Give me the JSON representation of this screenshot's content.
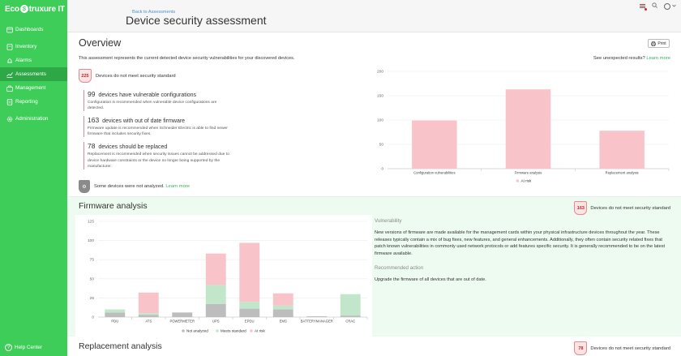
{
  "brand": {
    "name_prefix": "Eco",
    "name_suffix": "truxure IT",
    "logo_letter": "S"
  },
  "sidebar": {
    "items": [
      {
        "label": "Dashboards",
        "icon": "grid-icon"
      },
      {
        "label": "Inventory",
        "icon": "box-icon"
      },
      {
        "label": "Alarms",
        "icon": "bell-icon"
      },
      {
        "label": "Assessments",
        "icon": "chart-icon",
        "active": true
      },
      {
        "label": "Management",
        "icon": "briefcase-icon"
      },
      {
        "label": "Reporting",
        "icon": "report-icon"
      },
      {
        "label": "Administration",
        "icon": "gear-icon"
      }
    ],
    "help": "Help Center"
  },
  "header": {
    "back": "Back to Assessments",
    "title": "Device security assessment"
  },
  "overview": {
    "title": "Overview",
    "print": "Print",
    "description": "This assessment represents the current detected device security vulnerabilities for your discovered devices.",
    "unexpected": "See unexpected results?",
    "learn_more": "Learn more",
    "not_meet_count": "225",
    "not_meet_label": "Devices do not meet security standard",
    "reasons": [
      {
        "count": "99",
        "label": "devices have vulnerable configurations",
        "note": "Configuration is recommended when vulnerable device configurations are detected."
      },
      {
        "count": "163",
        "label": "devices with out of date firmware",
        "note": "Firmware update is recommended when Schneider Electric is able to find newer firmware that includes security fixes."
      },
      {
        "count": "78",
        "label": "devices should be replaced",
        "note": "Replacement is recommended when security issues cannot be addressed due to device hardware constraints or the device no longer being supported by the manufacturer."
      }
    ],
    "not_analyzed": "Some devices were not analyzed.",
    "not_analyzed_link": "Learn more"
  },
  "firmware": {
    "title": "Firmware analysis",
    "count": "163",
    "badge_label": "Devices do not meet security standard",
    "vuln_heading": "Vulnerability",
    "vuln_text": "New versions of firmware are made available for the management cards within your physical infrastructure devices throughout the year. These releases typically contain a mix of bug fixes, new features, and general enhancements. Additionally, they often contain security related fixes that patch known vulnerabilities in commonly used network protocols or add features specific security. It is generally recommended to be on the latest firmware available.",
    "action_heading": "Recommended action",
    "action_text": "Upgrade the firmware of all devices that are out of date."
  },
  "replacement": {
    "title": "Replacement analysis",
    "count": "78",
    "badge_label": "Devices do not meet security standard"
  },
  "colors": {
    "brand": "#3dcd58",
    "at_risk": "#f9c4c9",
    "meets": "#c2e6c9",
    "not_analyzed": "#bdbdbd"
  },
  "chart_data": [
    {
      "type": "bar",
      "categories": [
        "Configuration vulnerabilities",
        "Firmware analysis",
        "Replacement analysis"
      ],
      "series": [
        {
          "name": "At risk",
          "values": [
            99,
            163,
            78
          ]
        }
      ],
      "yticks": [
        0,
        50,
        100,
        150,
        200
      ],
      "ylim": [
        0,
        200
      ],
      "legend": "bottom"
    },
    {
      "type": "bar",
      "stacked": true,
      "categories": [
        "PDU",
        "ATS",
        "POWERMETER",
        "UPS",
        "EPDU",
        "EMS",
        "BATTERYMANAGER",
        "CRAC"
      ],
      "series": [
        {
          "name": "Not analyzed",
          "values": [
            6,
            3,
            6,
            17,
            11,
            10,
            1,
            2
          ]
        },
        {
          "name": "Meets standard",
          "values": [
            4,
            2,
            0,
            25,
            9,
            5,
            0,
            28
          ]
        },
        {
          "name": "At risk",
          "values": [
            0,
            27,
            0,
            41,
            77,
            16,
            0,
            0
          ]
        }
      ],
      "yticks": [
        0,
        25,
        50,
        75,
        100,
        125
      ],
      "ylim": [
        0,
        125
      ],
      "legend": "bottom"
    }
  ]
}
